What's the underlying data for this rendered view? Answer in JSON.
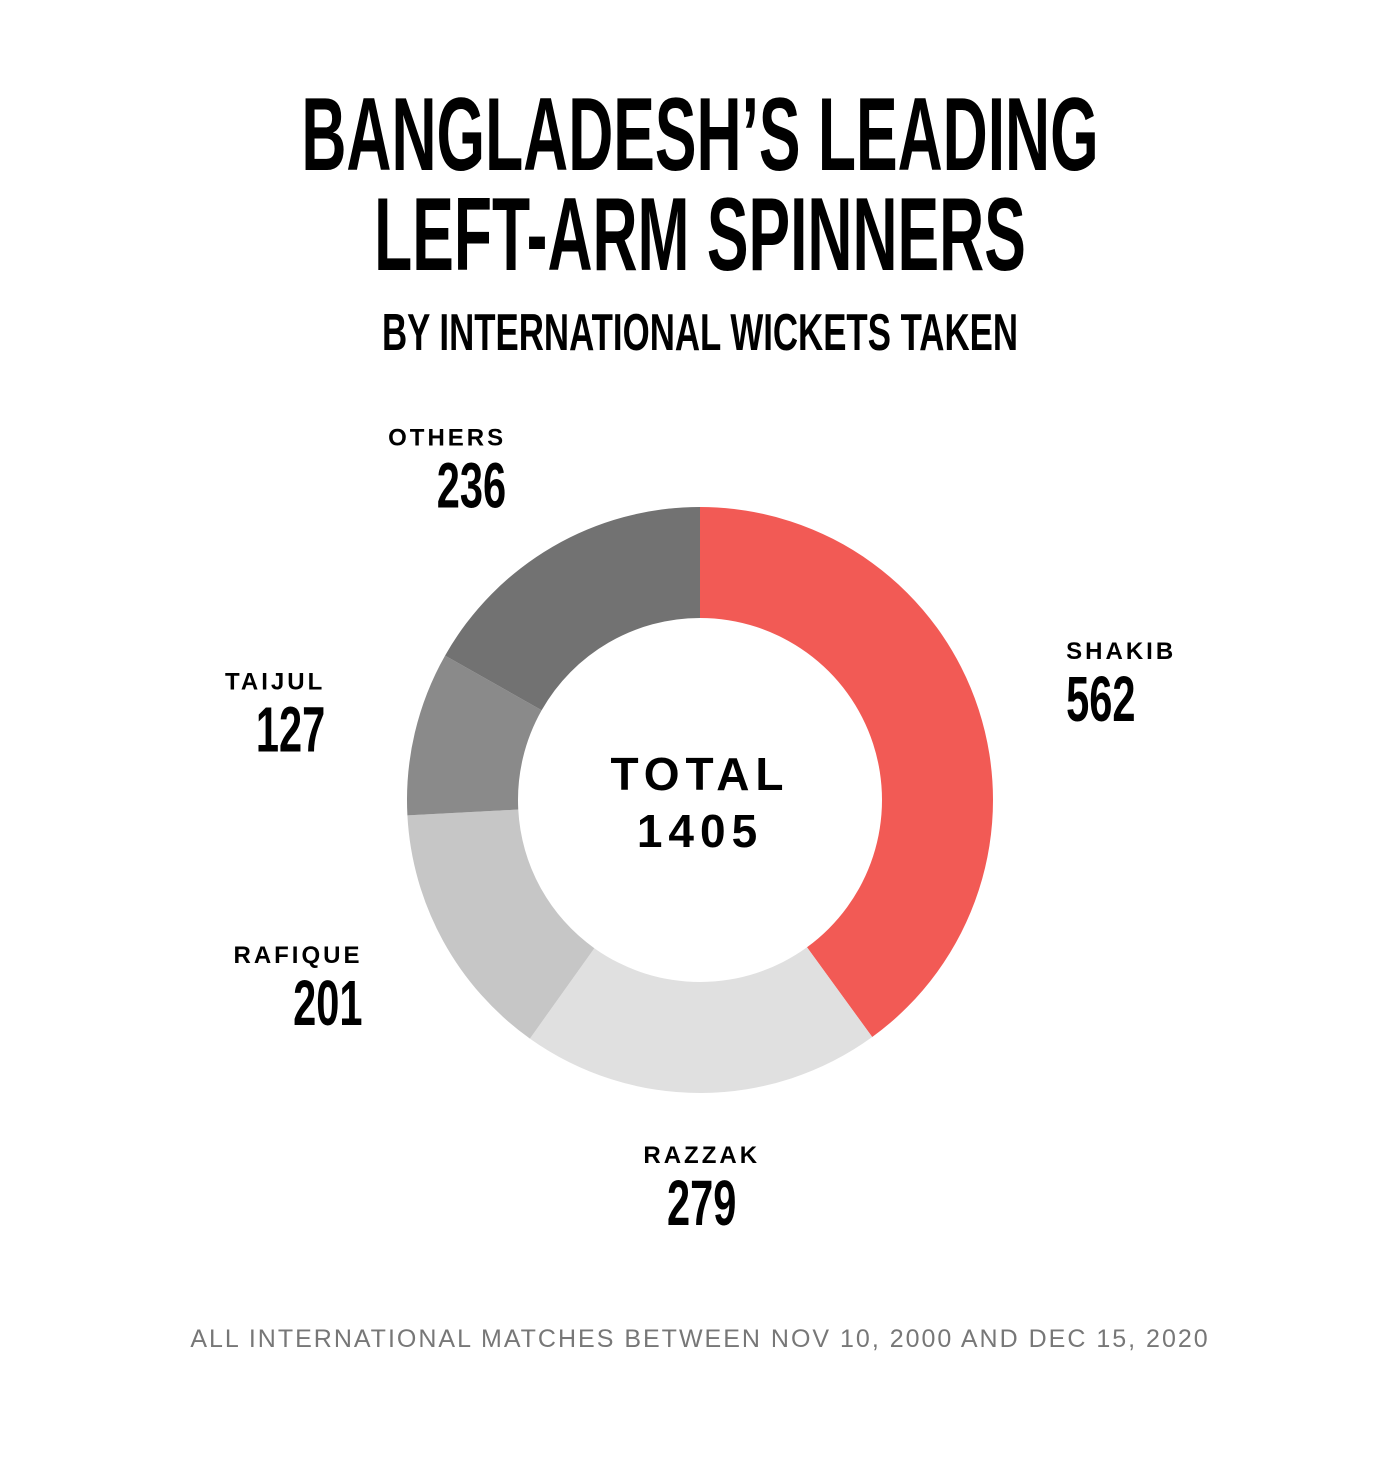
{
  "chart_data": {
    "type": "donut",
    "title": [
      "BANGLADESH’S LEADING",
      "LEFT-ARM SPINNERS"
    ],
    "subtitle": "BY INTERNATIONAL WICKETS TAKEN",
    "categories": [
      "SHAKIB",
      "RAZZAK",
      "RAFIQUE",
      "TAIJUL",
      "OTHERS"
    ],
    "values": [
      562,
      279,
      201,
      127,
      236
    ],
    "colors": [
      "#f25a55",
      "#e0e0e0",
      "#c6c6c6",
      "#8a8a8a",
      "#727272"
    ],
    "center_label": "TOTAL",
    "total": 1405,
    "footnote": "ALL INTERNATIONAL MATCHES BETWEEN NOV 10, 2000 AND DEC 15, 2020"
  }
}
